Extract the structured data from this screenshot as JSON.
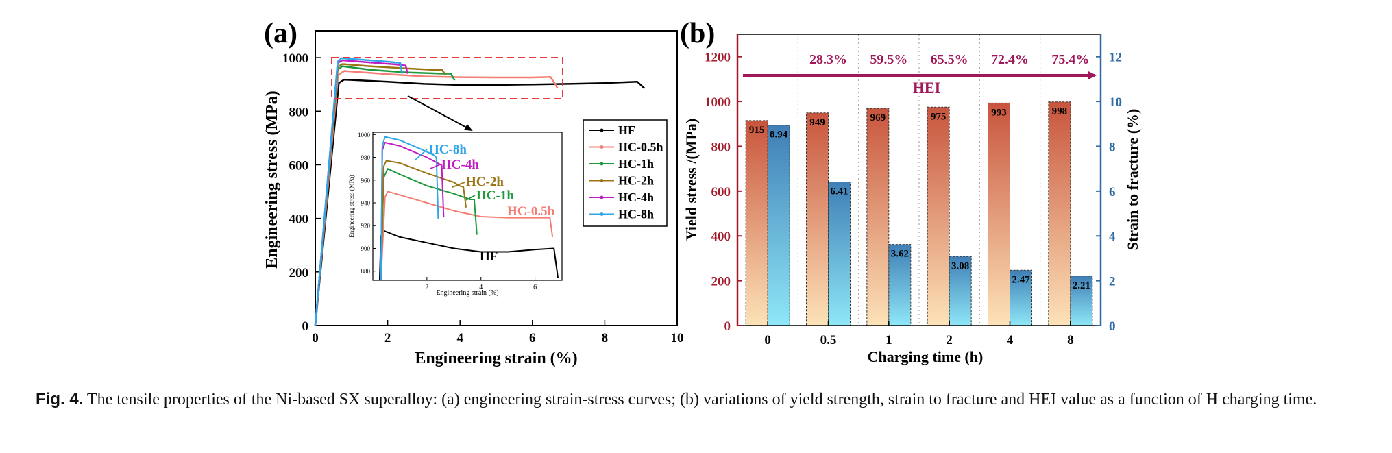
{
  "colors": {
    "hf": "#000000",
    "hc05": "#f47e74",
    "hc1": "#1d9a3c",
    "hc2": "#9b7514",
    "hc4": "#c01ec0",
    "hc8": "#2fa6ea",
    "maroon": "#a0175a",
    "axis_left": "#a31a2a",
    "axis_right": "#2f6aa3",
    "red_box": "#e83b3b",
    "bar_ys_top": "#c8553d",
    "bar_ys_bottom": "#fde2b8",
    "bar_sf_top": "#3f7fb6",
    "bar_sf_bottom": "#8fe7f7"
  },
  "chart_data": [
    {
      "type": "line",
      "panel": "(a)",
      "title": "",
      "xlabel": "Engineering strain (%)",
      "ylabel": "Engineering stress (MPa)",
      "xlim": [
        0,
        10
      ],
      "ylim": [
        0,
        1100
      ],
      "xticks": [
        0,
        2,
        4,
        6,
        8,
        10
      ],
      "yticks": [
        0,
        200,
        400,
        600,
        800,
        1000
      ],
      "legend": [
        "HF",
        "HC-0.5h",
        "HC-1h",
        "HC-2h",
        "HC-4h",
        "HC-8h"
      ],
      "legend_position": "right",
      "series": [
        {
          "name": "HF",
          "color_key": "hf",
          "x": [
            0,
            0.65,
            0.8,
            2,
            3,
            4,
            5,
            6,
            7,
            8,
            8.9,
            9.1
          ],
          "y": [
            0,
            905,
            918,
            910,
            902,
            898,
            898,
            900,
            902,
            905,
            910,
            885
          ]
        },
        {
          "name": "HC-0.5h",
          "color_key": "hc05",
          "x": [
            0,
            0.63,
            0.8,
            2,
            3,
            4,
            5,
            6,
            6.5,
            6.7
          ],
          "y": [
            0,
            935,
            950,
            938,
            930,
            927,
            926,
            926,
            928,
            885
          ]
        },
        {
          "name": "HC-1h",
          "color_key": "hc1",
          "x": [
            0,
            0.62,
            0.75,
            1.5,
            2.5,
            3.5,
            3.75,
            3.85
          ],
          "y": [
            0,
            955,
            968,
            955,
            945,
            940,
            940,
            915
          ]
        },
        {
          "name": "HC-2h",
          "color_key": "hc2",
          "x": [
            0,
            0.62,
            0.75,
            1.5,
            2.5,
            3.2,
            3.5,
            3.6
          ],
          "y": [
            0,
            965,
            976,
            968,
            960,
            955,
            955,
            935
          ]
        },
        {
          "name": "HC-4h",
          "color_key": "hc4",
          "x": [
            0,
            0.62,
            0.75,
            1.5,
            2.2,
            2.5,
            2.55
          ],
          "y": [
            0,
            980,
            990,
            982,
            975,
            970,
            940
          ]
        },
        {
          "name": "HC-8h",
          "color_key": "hc8",
          "x": [
            0,
            0.62,
            0.72,
            1.2,
            2.0,
            2.35,
            2.4
          ],
          "y": [
            0,
            985,
            998,
            993,
            985,
            980,
            940
          ]
        }
      ],
      "inset": {
        "xlabel": "Engineering strain (%)",
        "ylabel": "Engineering stress (MPa)",
        "xlim": [
          0,
          7
        ],
        "ylim": [
          872,
          1002
        ],
        "xticks": [
          2,
          4,
          6
        ],
        "yticks": [
          880,
          900,
          920,
          940,
          960,
          980,
          1000
        ],
        "labels": [
          "HC-8h",
          "HC-4h",
          "HC-2h",
          "HC-1h",
          "HC-0.5h",
          "HF"
        ],
        "series": [
          {
            "name": "HF",
            "color_key": "hf",
            "x": [
              0.25,
              0.3,
              0.35,
              1,
              2,
              3,
              4,
              5,
              6,
              6.7,
              6.85
            ],
            "y": [
              872,
              910,
              916,
              910,
              905,
              900,
              897,
              897,
              899,
              900,
              874
            ]
          },
          {
            "name": "HC-0.5h",
            "color_key": "hc05",
            "x": [
              0.3,
              0.45,
              0.55,
              1,
              2,
              3,
              4,
              5,
              6,
              6.55,
              6.65
            ],
            "y": [
              872,
              945,
              950,
              947,
              940,
              933,
              928,
              927,
              927,
              927,
              910
            ]
          },
          {
            "name": "HC-1h",
            "color_key": "hc1",
            "x": [
              0.3,
              0.4,
              0.55,
              1,
              2,
              3,
              3.6,
              3.75,
              3.85
            ],
            "y": [
              872,
              962,
              970,
              965,
              955,
              948,
              943,
              943,
              912
            ]
          },
          {
            "name": "HC-2h",
            "color_key": "hc2",
            "x": [
              0.3,
              0.4,
              0.5,
              1,
              2,
              3,
              3.2,
              3.35,
              3.45
            ],
            "y": [
              872,
              972,
              977,
              975,
              966,
              958,
              955,
              954,
              936
            ]
          },
          {
            "name": "HC-4h",
            "color_key": "hc4",
            "x": [
              0.3,
              0.35,
              0.45,
              1,
              2,
              2.4,
              2.55,
              2.62
            ],
            "y": [
              872,
              986,
              993,
              990,
              980,
              975,
              973,
              928
            ]
          },
          {
            "name": "HC-8h",
            "color_key": "hc8",
            "x": [
              0.3,
              0.35,
              0.45,
              1,
              1.8,
              2.25,
              2.35,
              2.42
            ],
            "y": [
              872,
              990,
              998,
              995,
              987,
              982,
              980,
              926
            ]
          }
        ]
      }
    },
    {
      "type": "bar",
      "panel": "(b)",
      "title": "",
      "xlabel": "Charging time (h)",
      "ylabel_left": "Yield stress /(MPa)",
      "ylabel_right": "Strain to fracture (%)",
      "categories": [
        "0",
        "0.5",
        "1",
        "2",
        "4",
        "8"
      ],
      "ylim_left": [
        0,
        1300
      ],
      "ylim_right": [
        0,
        13
      ],
      "yticks_left": [
        0,
        200,
        400,
        600,
        800,
        1000,
        1200
      ],
      "yticks_right": [
        0,
        2,
        4,
        6,
        8,
        10,
        12
      ],
      "series": [
        {
          "name": "Yield stress",
          "axis": "left",
          "values": [
            915,
            949,
            969,
            975,
            993,
            998
          ],
          "labels": [
            "915",
            "949",
            "969",
            "975",
            "993",
            "998"
          ]
        },
        {
          "name": "Strain to fracture",
          "axis": "right",
          "values": [
            8.94,
            6.41,
            3.62,
            3.08,
            2.47,
            2.21
          ],
          "labels": [
            "8.94",
            "6.41",
            "3.62",
            "3.08",
            "2.47",
            "2.21"
          ]
        }
      ],
      "hei_label": "HEI",
      "hei_values": [
        "28.3%",
        "59.5%",
        "65.5%",
        "72.4%",
        "75.4%"
      ]
    }
  ],
  "caption": {
    "label": "Fig. 4.",
    "text": "The tensile properties of the Ni-based SX superalloy: (a) engineering strain-stress curves; (b) variations of yield strength, strain to fracture and HEI value as a function of H charging time."
  }
}
